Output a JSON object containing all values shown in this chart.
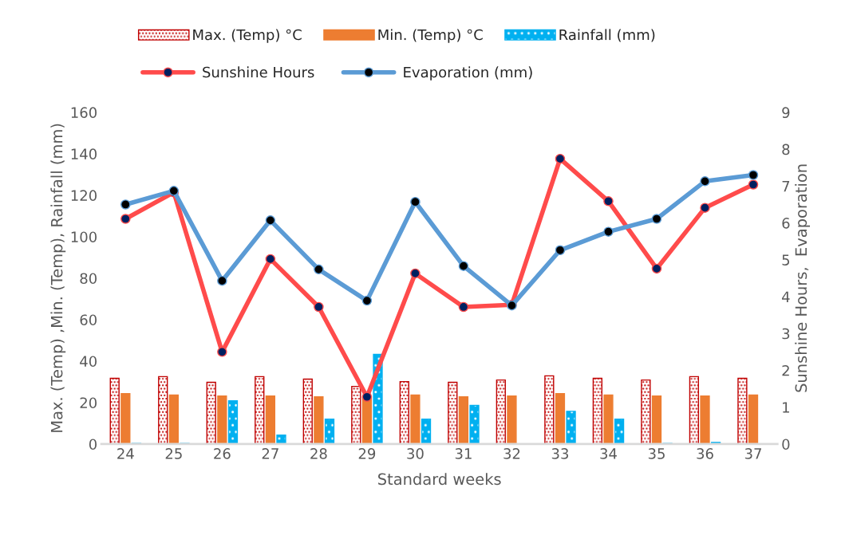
{
  "chart_data": {
    "type": "bar",
    "xlabel": "Standard weeks",
    "ylabel": "Max. (Temp) ,Min. (Temp), Rainfall (mm)",
    "y2label": "Sunshine Hours,  Evaporation",
    "categories": [
      "24",
      "25",
      "26",
      "27",
      "28",
      "29",
      "30",
      "31",
      "32",
      "33",
      "34",
      "35",
      "36",
      "37"
    ],
    "series": [
      {
        "name": "Max. (Temp) °C",
        "color": "#c00000",
        "values": [
          31.7,
          32.5,
          29.8,
          32.5,
          31.3,
          27.8,
          30.1,
          29.8,
          30.9,
          32.9,
          31.7,
          30.9,
          32.5,
          31.7
        ]
      },
      {
        "name": "Min. (Temp) °C",
        "color": "#ed7d31",
        "values": [
          24.3,
          23.6,
          23.2,
          23.2,
          22.8,
          22.8,
          23.6,
          22.8,
          23.2,
          24.3,
          23.6,
          23.2,
          23.2,
          23.6
        ]
      },
      {
        "name": "Rainfall (mm)",
        "color": "#00b0f0",
        "values": [
          0.3,
          0.3,
          20.9,
          4.3,
          12,
          43.3,
          12,
          18.6,
          0,
          15.8,
          12,
          0.3,
          0.8,
          0
        ]
      },
      {
        "name": "Sunshine Hours",
        "type": "line",
        "axis": "y2",
        "color": "#ff4b4b",
        "values": [
          6.11,
          6.83,
          2.5,
          5.02,
          3.72,
          1.28,
          4.63,
          3.72,
          3.78,
          7.74,
          6.59,
          4.76,
          6.41,
          7.04
        ]
      },
      {
        "name": "Evaporation (mm)",
        "type": "line",
        "axis": "y2",
        "color": "#5b9bd5",
        "values": [
          6.5,
          6.87,
          4.43,
          6.07,
          4.74,
          3.89,
          6.57,
          4.83,
          3.76,
          5.26,
          5.76,
          6.11,
          7.13,
          7.3
        ]
      }
    ],
    "ylim": [
      0,
      160
    ],
    "yticks": [
      0,
      20,
      40,
      60,
      80,
      100,
      120,
      140,
      160
    ],
    "y2lim": [
      0,
      9
    ],
    "y2ticks": [
      0,
      1,
      2,
      3,
      4,
      5,
      6,
      7,
      8,
      9
    ],
    "marker": "circle",
    "grid": false,
    "legend": "top"
  }
}
